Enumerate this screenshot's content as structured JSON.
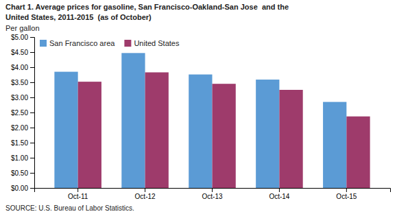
{
  "chart_data": {
    "type": "bar",
    "title": "Chart 1. Average prices for gasoline, San Francisco-Oakland-San Jose  and the\nUnited States, 2011-2015  (as of October)",
    "y_label": "Per gallon",
    "source": "SOURCE: U.S. Bureau of Labor Statistics.",
    "categories": [
      "Oct-11",
      "Oct-12",
      "Oct-13",
      "Oct-14",
      "Oct-15"
    ],
    "series": [
      {
        "name": "San Francisco area",
        "color": "#5B9BD5",
        "values": [
          3.85,
          4.47,
          3.76,
          3.59,
          2.85
        ]
      },
      {
        "name": "United States",
        "color": "#9E3B6B",
        "values": [
          3.52,
          3.83,
          3.45,
          3.25,
          2.37
        ]
      }
    ],
    "ylim": [
      0.0,
      5.0
    ],
    "yticks": [
      {
        "value": 0.0,
        "label": "$0.00"
      },
      {
        "value": 0.5,
        "label": "$0.50"
      },
      {
        "value": 1.0,
        "label": "$1.00"
      },
      {
        "value": 1.5,
        "label": "$1.50"
      },
      {
        "value": 2.0,
        "label": "$2.00"
      },
      {
        "value": 2.5,
        "label": "$2.50"
      },
      {
        "value": 3.0,
        "label": "$3.00"
      },
      {
        "value": 3.5,
        "label": "$3.50"
      },
      {
        "value": 4.0,
        "label": "$4.00"
      },
      {
        "value": 4.5,
        "label": "$4.50"
      },
      {
        "value": 5.0,
        "label": "$5.00"
      }
    ],
    "grid": false,
    "legend": "upper left"
  }
}
